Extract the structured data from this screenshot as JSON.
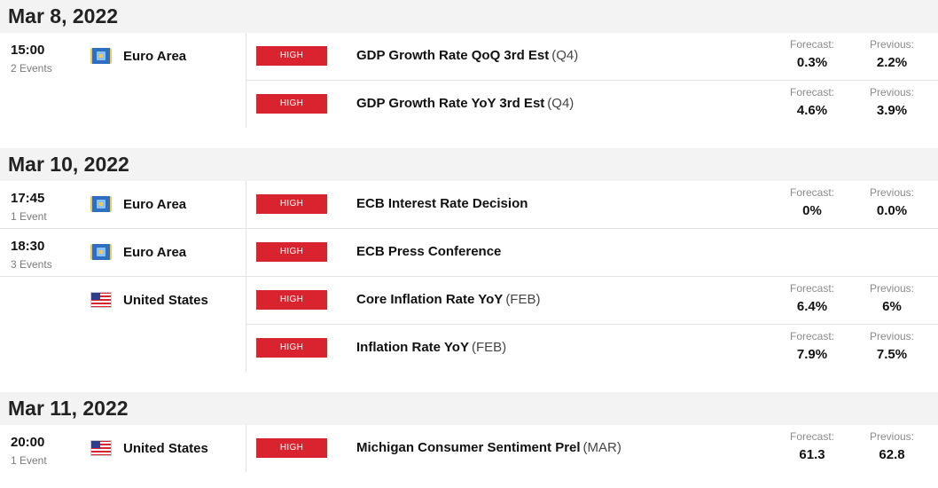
{
  "labels": {
    "forecast": "Forecast:",
    "previous": "Previous:"
  },
  "days": [
    {
      "date": "Mar 8, 2022",
      "groups": [
        {
          "time": "15:00",
          "count": "2 Events",
          "countries": [
            {
              "name": "Euro Area",
              "flag_icon": "euro-area-flag-icon",
              "events": [
                {
                  "impact": "HIGH",
                  "name": "GDP Growth Rate QoQ 3rd Est",
                  "period": "(Q4)",
                  "forecast": "0.3%",
                  "previous": "2.2%"
                },
                {
                  "impact": "HIGH",
                  "name": "GDP Growth Rate YoY 3rd Est",
                  "period": "(Q4)",
                  "forecast": "4.6%",
                  "previous": "3.9%"
                }
              ]
            }
          ]
        }
      ]
    },
    {
      "date": "Mar 10, 2022",
      "groups": [
        {
          "time": "17:45",
          "count": "1 Event",
          "countries": [
            {
              "name": "Euro Area",
              "flag_icon": "euro-area-flag-icon",
              "events": [
                {
                  "impact": "HIGH",
                  "name": "ECB Interest Rate Decision",
                  "period": "",
                  "forecast": "0%",
                  "previous": "0.0%"
                }
              ]
            }
          ]
        },
        {
          "time": "18:30",
          "count": "3 Events",
          "countries": [
            {
              "name": "Euro Area",
              "flag_icon": "euro-area-flag-icon",
              "events": [
                {
                  "impact": "HIGH",
                  "name": "ECB Press Conference",
                  "period": ""
                }
              ]
            },
            {
              "name": "United States",
              "flag_icon": "united-states-flag-icon",
              "events": [
                {
                  "impact": "HIGH",
                  "name": "Core Inflation Rate YoY",
                  "period": "(FEB)",
                  "forecast": "6.4%",
                  "previous": "6%"
                },
                {
                  "impact": "HIGH",
                  "name": "Inflation Rate YoY",
                  "period": "(FEB)",
                  "forecast": "7.9%",
                  "previous": "7.5%"
                }
              ]
            }
          ]
        }
      ]
    },
    {
      "date": "Mar 11, 2022",
      "groups": [
        {
          "time": "20:00",
          "count": "1 Event",
          "countries": [
            {
              "name": "United States",
              "flag_icon": "united-states-flag-icon",
              "events": [
                {
                  "impact": "HIGH",
                  "name": "Michigan Consumer Sentiment Prel",
                  "period": "(MAR)",
                  "forecast": "61.3",
                  "previous": "62.8"
                }
              ]
            }
          ]
        }
      ]
    }
  ],
  "colors": {
    "impact_high": "#d9232e",
    "header_bg": "#f3f3f3",
    "divider": "#e3e3e3"
  }
}
